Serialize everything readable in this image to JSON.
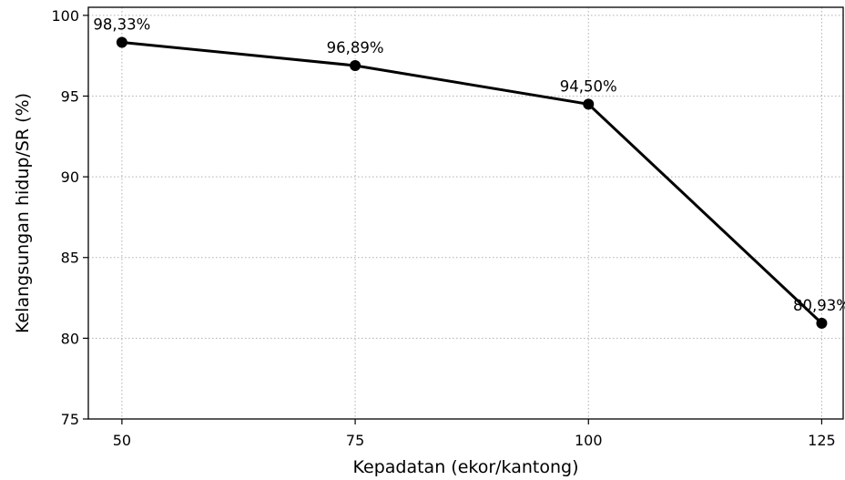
{
  "chart_data": {
    "type": "line",
    "title": "",
    "xlabel": "Kepadatan (ekor/kantong)",
    "ylabel": "Kelangsungan hidup/SR (%)",
    "x": [
      50,
      75,
      100,
      125
    ],
    "x_ticks": [
      "50",
      "75",
      "100",
      "125"
    ],
    "y_ticks": [
      "75",
      "80",
      "85",
      "90",
      "95",
      "100"
    ],
    "xlim": [
      46.4,
      127.3
    ],
    "ylim": [
      75,
      100.5
    ],
    "grid": true,
    "legend": "none",
    "series": [
      {
        "values": [
          98.33,
          96.89,
          94.5,
          80.93
        ],
        "labels": [
          "98,33%",
          "96,89%",
          "94,50%",
          "80,93%"
        ],
        "color": "#000000",
        "marker": "circle"
      }
    ]
  }
}
